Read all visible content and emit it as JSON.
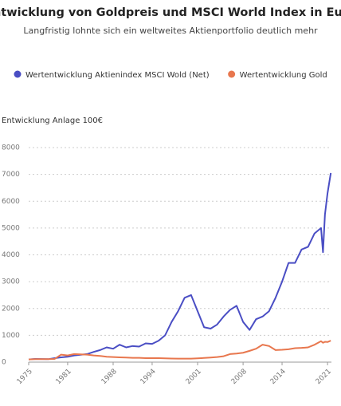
{
  "chart_data": {
    "type": "line",
    "title": "Entwicklung von Goldpreis und MSCI World Index in Euro",
    "subtitle": "Langfristig lohnte sich ein weltweites Aktienportfolio deutlich mehr",
    "y_label": "Entwicklung Anlage 100€",
    "x": [
      1975,
      1976,
      1978,
      1979,
      1980,
      1981,
      1982,
      1984,
      1985,
      1986,
      1987,
      1988,
      1989,
      1990,
      1991,
      1992,
      1993,
      1994,
      1995,
      1996,
      1997,
      1998,
      1999,
      2000,
      2001,
      2002,
      2003,
      2004,
      2005,
      2006,
      2007,
      2008,
      2009,
      2010,
      2011,
      2012,
      2013,
      2014,
      2015,
      2016,
      2017,
      2018,
      2019,
      2020,
      2020.3,
      2020.6,
      2021,
      2021.5
    ],
    "series": [
      {
        "name": "Wertentwicklung Aktienindex MSCI Wold (Net)",
        "color": "#4a4ec4",
        "values": [
          100,
          120,
          110,
          150,
          180,
          200,
          250,
          300,
          380,
          450,
          550,
          500,
          650,
          550,
          600,
          580,
          700,
          680,
          800,
          1000,
          1500,
          1900,
          2400,
          2500,
          1900,
          1300,
          1250,
          1400,
          1700,
          1950,
          2100,
          1500,
          1200,
          1600,
          1700,
          1900,
          2400,
          3000,
          3700,
          3700,
          4200,
          4300,
          4800,
          5000,
          4100,
          5500,
          6300,
          7050
        ]
      },
      {
        "name": "Wertentwicklung Gold",
        "color": "#e8774e",
        "values": [
          100,
          110,
          110,
          120,
          280,
          250,
          300,
          280,
          250,
          230,
          200,
          190,
          180,
          170,
          160,
          160,
          150,
          150,
          150,
          140,
          135,
          130,
          130,
          130,
          140,
          155,
          170,
          190,
          220,
          300,
          320,
          350,
          420,
          500,
          650,
          600,
          450,
          460,
          480,
          520,
          530,
          550,
          650,
          780,
          720,
          760,
          750,
          800
        ]
      }
    ],
    "xlim": [
      1975,
      2021.6
    ],
    "xticks": [
      1975,
      1981,
      1988,
      1994,
      2001,
      2008,
      2014,
      2021
    ],
    "ylim": [
      0,
      8000
    ],
    "yticks": [
      0,
      1000,
      2000,
      3000,
      4000,
      5000,
      6000,
      7000,
      8000
    ],
    "grid": true
  }
}
